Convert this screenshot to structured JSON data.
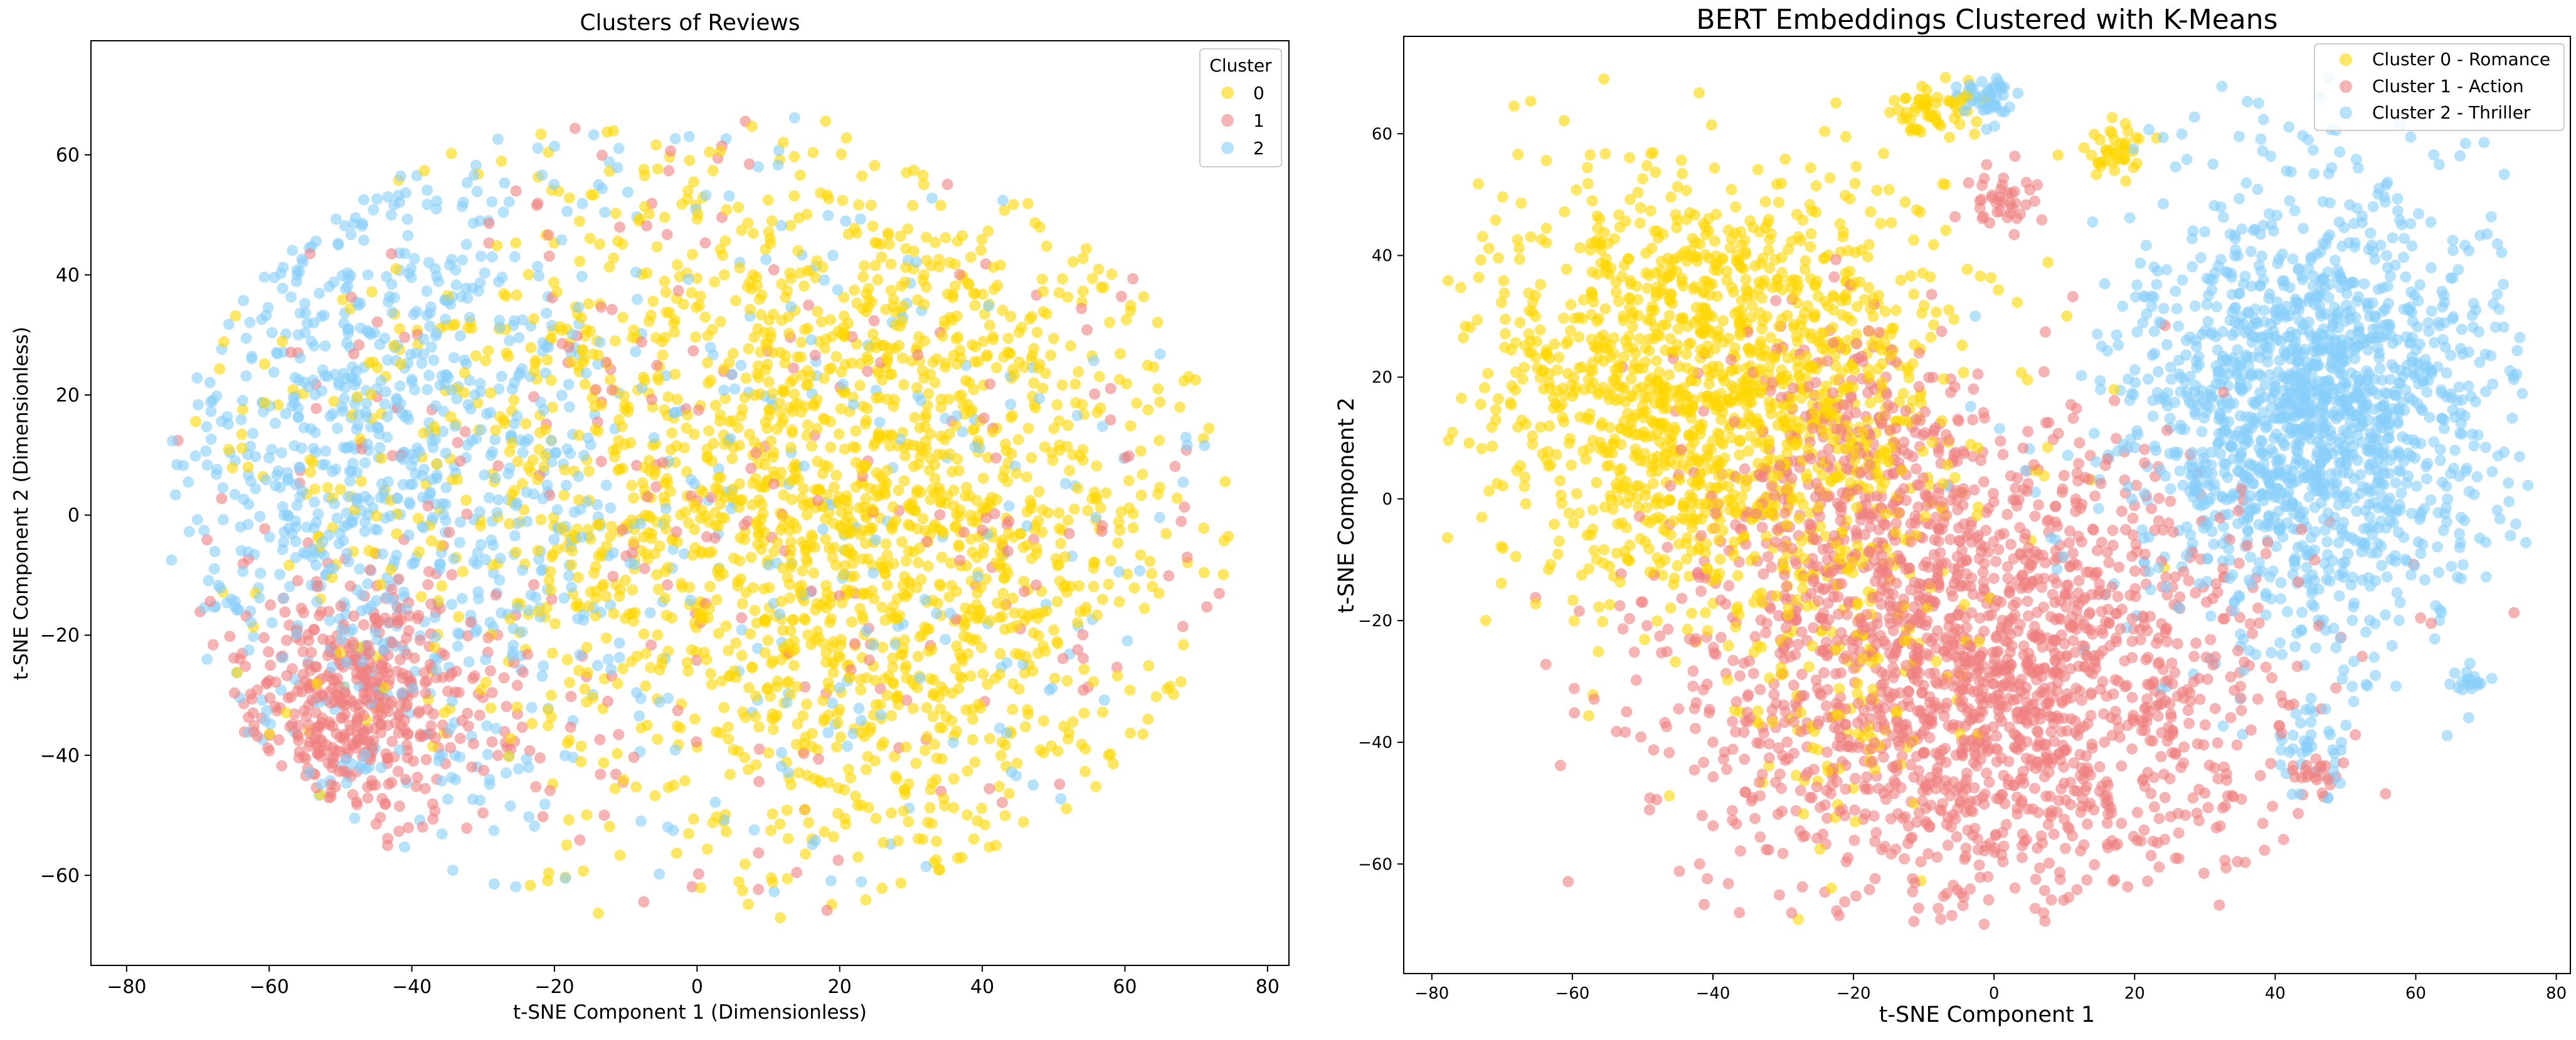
{
  "chart_data": [
    {
      "type": "scatter",
      "title": "Clusters of Reviews",
      "xlabel": "t-SNE Component 1 (Dimensionless)",
      "ylabel": "t-SNE Component 2 (Dimensionless)",
      "xlim": [
        -85,
        83
      ],
      "ylim": [
        -75,
        79
      ],
      "xticks": [
        -80,
        -60,
        -40,
        -20,
        0,
        20,
        40,
        60,
        80
      ],
      "yticks": [
        -60,
        -40,
        -20,
        0,
        20,
        40,
        60
      ],
      "grid": false,
      "legend": {
        "title": "Cluster",
        "location": "top-right",
        "entries": [
          "0",
          "1",
          "2"
        ]
      },
      "series": [
        {
          "name": "0",
          "color": "#FFD700",
          "regions": [
            {
              "cx": 25,
              "cy": -3,
              "sx": 22,
              "sy": 30,
              "count": 1400
            },
            {
              "cx": -5,
              "cy": 15,
              "sx": 30,
              "sy": 28,
              "count": 500
            },
            {
              "cx": 5,
              "cy": 0,
              "sx": 42,
              "sy": 36,
              "count": 300
            }
          ]
        },
        {
          "name": "1",
          "color": "#F08080",
          "regions": [
            {
              "cx": -48,
              "cy": -32,
              "sx": 10,
              "sy": 10,
              "count": 500
            },
            {
              "cx": 0,
              "cy": 0,
              "sx": 45,
              "sy": 38,
              "count": 350
            }
          ]
        },
        {
          "name": "2",
          "color": "#87CEFA",
          "regions": [
            {
              "cx": -45,
              "cy": 10,
              "sx": 16,
              "sy": 30,
              "count": 900
            },
            {
              "cx": 0,
              "cy": 0,
              "sx": 45,
              "sy": 38,
              "count": 450
            }
          ]
        }
      ]
    },
    {
      "type": "scatter",
      "title": "BERT Embeddings Clustered with K-Means",
      "xlabel": "t-SNE Component 1",
      "ylabel": "t-SNE Component 2",
      "xlim": [
        -84,
        82
      ],
      "ylim": [
        -78,
        76
      ],
      "xticks": [
        -80,
        -60,
        -40,
        -20,
        0,
        20,
        40,
        60,
        80
      ],
      "yticks": [
        -60,
        -40,
        -20,
        0,
        20,
        40,
        60
      ],
      "grid": false,
      "legend": {
        "title": "",
        "location": "top-right",
        "entries": [
          "Cluster 0 - Romance",
          "Cluster 1 - Action",
          "Cluster 2 - Thriller"
        ]
      },
      "series": [
        {
          "name": "Cluster 0 - Romance",
          "color": "#FFD700",
          "regions": [
            {
              "cx": -40,
              "cy": 18,
              "sx": 17,
              "sy": 18,
              "count": 1500
            },
            {
              "cx": -8,
              "cy": 64,
              "sx": 3,
              "sy": 2,
              "count": 60
            },
            {
              "cx": 18,
              "cy": 57,
              "sx": 3,
              "sy": 2,
              "count": 40
            },
            {
              "cx": -20,
              "cy": -30,
              "sx": 8,
              "sy": 12,
              "count": 120
            }
          ]
        },
        {
          "name": "Cluster 1 - Action",
          "color": "#F08080",
          "regions": [
            {
              "cx": -3,
              "cy": -28,
              "sx": 20,
              "sy": 20,
              "count": 1900
            },
            {
              "cx": -22,
              "cy": 5,
              "sx": 10,
              "sy": 12,
              "count": 250
            },
            {
              "cx": 2,
              "cy": 50,
              "sx": 3,
              "sy": 3,
              "count": 40
            },
            {
              "cx": 45,
              "cy": -45,
              "sx": 2,
              "sy": 1.5,
              "count": 20
            }
          ]
        },
        {
          "name": "Cluster 2 - Thriller",
          "color": "#87CEFA",
          "regions": [
            {
              "cx": 45,
              "cy": 15,
              "sx": 13,
              "sy": 18,
              "count": 1600
            },
            {
              "cx": -1,
              "cy": 66,
              "sx": 2,
              "sy": 1.5,
              "count": 50
            },
            {
              "cx": 67,
              "cy": -30,
              "sx": 1.5,
              "sy": 0.6,
              "count": 15
            },
            {
              "cx": 45,
              "cy": -40,
              "sx": 3,
              "sy": 4,
              "count": 40
            }
          ]
        }
      ]
    }
  ]
}
